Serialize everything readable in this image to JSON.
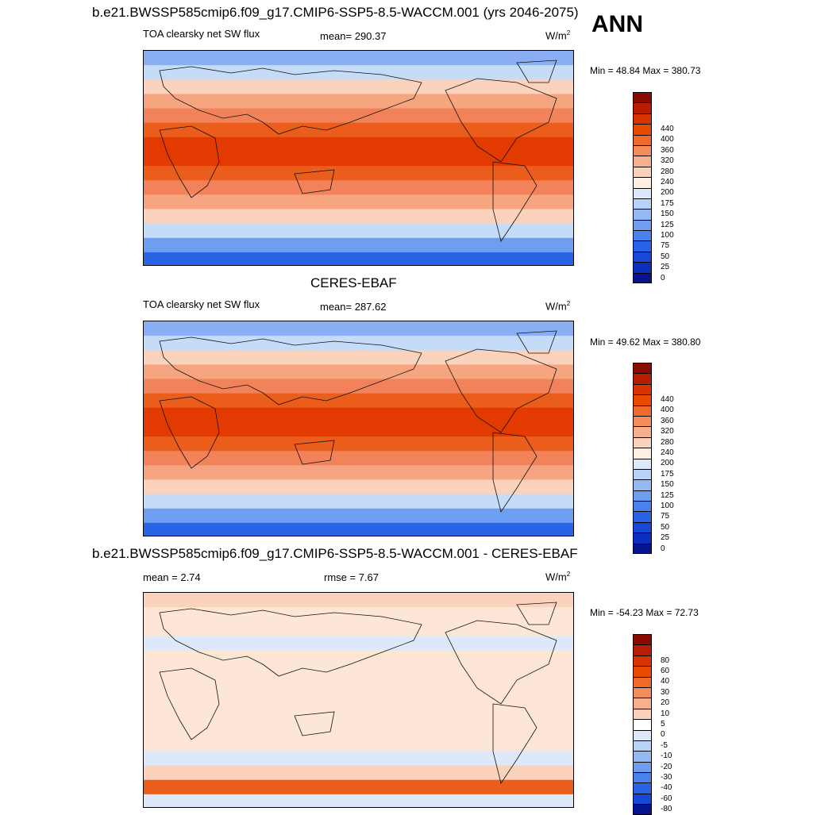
{
  "header": {
    "title": "b.e21.BWSSP585cmip6.f09_g17.CMIP6-SSP5-8.5-WACCM.001 (yrs 2046-2075)",
    "season": "ANN"
  },
  "panels": [
    {
      "id": "model",
      "panel_title": "",
      "variable": "TOA clearsky net SW flux",
      "mean": "mean= 290.37",
      "units": "W/m",
      "units_sup": "2",
      "minmax": "Min =  48.84 Max = 380.73",
      "colorbar": {
        "colors": [
          "#8b0b00",
          "#b81d00",
          "#d93300",
          "#e84a00",
          "#f06a2c",
          "#f48d5c",
          "#f7b08d",
          "#fbd3bd",
          "#fdf0e2",
          "#dde9fb",
          "#b9d2f8",
          "#94b9f4",
          "#6e9ef0",
          "#4a82ed",
          "#2a64e6",
          "#1848d6",
          "#0b2ebd",
          "#06158f"
        ],
        "labels": [
          "440",
          "400",
          "360",
          "320",
          "280",
          "240",
          "200",
          "175",
          "150",
          "125",
          "100",
          "75",
          "50",
          "25",
          "0"
        ]
      },
      "bands": [
        "#8aaef3",
        "#c5dcf9",
        "#fbd3bd",
        "#f6a580",
        "#f2825a",
        "#ea5d1a",
        "#e23a00",
        "#e23a00",
        "#ea5d1a",
        "#f2825a",
        "#f6a580",
        "#fbd3bd",
        "#c5dcf9",
        "#6e9ef0",
        "#2a64e6"
      ]
    },
    {
      "id": "obs",
      "panel_title": "CERES-EBAF",
      "variable": "TOA clearsky net SW flux",
      "mean": "mean= 287.62",
      "units": "W/m",
      "units_sup": "2",
      "minmax": "Min =  49.62 Max = 380.80",
      "colorbar": {
        "colors": [
          "#8b0b00",
          "#b81d00",
          "#d93300",
          "#e84a00",
          "#f06a2c",
          "#f48d5c",
          "#f7b08d",
          "#fbd3bd",
          "#fdf0e2",
          "#dde9fb",
          "#b9d2f8",
          "#94b9f4",
          "#6e9ef0",
          "#4a82ed",
          "#2a64e6",
          "#1848d6",
          "#0b2ebd",
          "#06158f"
        ],
        "labels": [
          "440",
          "400",
          "360",
          "320",
          "280",
          "240",
          "200",
          "175",
          "150",
          "125",
          "100",
          "75",
          "50",
          "25",
          "0"
        ]
      },
      "bands": [
        "#8aaef3",
        "#c5dcf9",
        "#fbd3bd",
        "#f6a580",
        "#f2825a",
        "#ea5d1a",
        "#e23a00",
        "#e23a00",
        "#ea5d1a",
        "#f2825a",
        "#f6a580",
        "#fbd3bd",
        "#c5dcf9",
        "#6e9ef0",
        "#2a64e6"
      ]
    },
    {
      "id": "diff",
      "panel_title": "b.e21.BWSSP585cmip6.f09_g17.CMIP6-SSP5-8.5-WACCM.001 - CERES-EBAF",
      "variable": "mean =   2.74",
      "mean": "rmse =   7.67",
      "units": "W/m",
      "units_sup": "2",
      "minmax": "Min = -54.23 Max =  72.73",
      "colorbar": {
        "colors": [
          "#8b0b00",
          "#b81d00",
          "#d93300",
          "#e84a00",
          "#f06a2c",
          "#f48d5c",
          "#f7b08d",
          "#fbd3bd",
          "#ffffff",
          "#dde9fb",
          "#b9d2f8",
          "#94b9f4",
          "#6e9ef0",
          "#4a82ed",
          "#2a64e6",
          "#1848d6",
          "#06158f"
        ],
        "labels": [
          "80",
          "60",
          "40",
          "30",
          "20",
          "10",
          "5",
          "0",
          "-5",
          "-10",
          "-20",
          "-30",
          "-40",
          "-60",
          "-80"
        ]
      },
      "bands": [
        "#fbd3bd",
        "#fde6d6",
        "#fde6d6",
        "#dde9fb",
        "#fde6d6",
        "#fde6d6",
        "#fde6d6",
        "#fde6d6",
        "#fde6d6",
        "#fde6d6",
        "#fde6d6",
        "#dde9fb",
        "#fbd3bd",
        "#ea5d1a",
        "#dde9fb"
      ]
    }
  ]
}
